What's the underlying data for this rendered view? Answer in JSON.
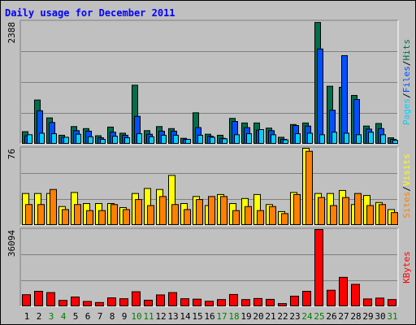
{
  "colors": {
    "background": "#c0c0c0",
    "title": "#0000ff",
    "hits": "#006f4b",
    "files": "#0050ff",
    "pages": "#00d0ff",
    "visits": "#ffff00",
    "sites": "#ff8000",
    "kbytes": "#ff0000",
    "weekend_day": "#007f00",
    "weekday": "#000000"
  },
  "chart_data": {
    "type": "bar",
    "title": "Daily usage for December 2011",
    "categories": [
      "1",
      "2",
      "3",
      "4",
      "5",
      "6",
      "7",
      "8",
      "9",
      "10",
      "11",
      "12",
      "13",
      "14",
      "15",
      "16",
      "17",
      "18",
      "19",
      "20",
      "21",
      "22",
      "23",
      "24",
      "25",
      "26",
      "27",
      "28",
      "29",
      "30",
      "31"
    ],
    "weekend_days": [
      "3",
      "4",
      "10",
      "11",
      "17",
      "18",
      "24",
      "25",
      "31"
    ],
    "panels": [
      {
        "name": "hits-files-pages",
        "ymax_label": "2388",
        "ymax": 2388,
        "legend": {
          "pages": "Pages",
          "files": "Files",
          "hits": "Hits",
          "sep": "/"
        },
        "series": [
          {
            "name": "Hits",
            "values": [
              230,
              850,
              500,
              160,
              330,
              290,
              150,
              320,
              200,
              1140,
              250,
              330,
              290,
              100,
              600,
              180,
              160,
              490,
              400,
              400,
              300,
              120,
              370,
              400,
              2370,
              1120,
              1100,
              940,
              340,
              390,
              110
            ]
          },
          {
            "name": "Files",
            "values": [
              150,
              640,
              410,
              120,
              250,
              240,
              110,
              220,
              160,
              530,
              180,
              240,
              240,
              80,
              310,
              140,
              100,
              430,
              310,
              260,
              250,
              80,
              350,
              340,
              1850,
              650,
              1720,
              860,
              280,
              290,
              80
            ]
          },
          {
            "name": "Pages",
            "values": [
              170,
              200,
              190,
              120,
              180,
              130,
              80,
              140,
              110,
              190,
              130,
              160,
              160,
              80,
              160,
              120,
              90,
              170,
              190,
              270,
              170,
              70,
              190,
              200,
              170,
              220,
              200,
              170,
              220,
              170,
              60
            ]
          }
        ]
      },
      {
        "name": "visits-sites",
        "ymax_label": "76",
        "ymax": 76,
        "legend": {
          "sites": "Sites",
          "visits": "Visits",
          "sep": "/"
        },
        "series": [
          {
            "name": "Visits",
            "values": [
              31,
              31,
              31,
              18,
              32,
              21,
              21,
              21,
              17,
              31,
              36,
              35,
              49,
              21,
              28,
              19,
              30,
              21,
              26,
              30,
              20,
              13,
              32,
              76,
              31,
              31,
              34,
              20,
              29,
              22,
              15
            ]
          },
          {
            "name": "Sites",
            "values": [
              20,
              20,
              35,
              15,
              20,
              14,
              14,
              20,
              15,
              25,
              19,
              28,
              20,
              15,
              25,
              28,
              28,
              14,
              18,
              14,
              18,
              11,
              30,
              73,
              27,
              19,
              27,
              31,
              19,
              20,
              12
            ]
          }
        ]
      },
      {
        "name": "kbytes",
        "ymax_label": "36094",
        "ymax": 36094,
        "legend": {
          "kbytes": "KBytes"
        },
        "series": [
          {
            "name": "KBytes",
            "values": [
              5300,
              6900,
              6300,
              2600,
              4200,
              2100,
              1600,
              3800,
              3400,
              6700,
              2700,
              5200,
              6300,
              3400,
              3200,
              2200,
              3000,
              5400,
              3000,
              3500,
              3100,
              1100,
              4600,
              6900,
              36094,
              7400,
              13500,
              10200,
              3300,
              3700,
              3000
            ]
          }
        ]
      }
    ]
  }
}
